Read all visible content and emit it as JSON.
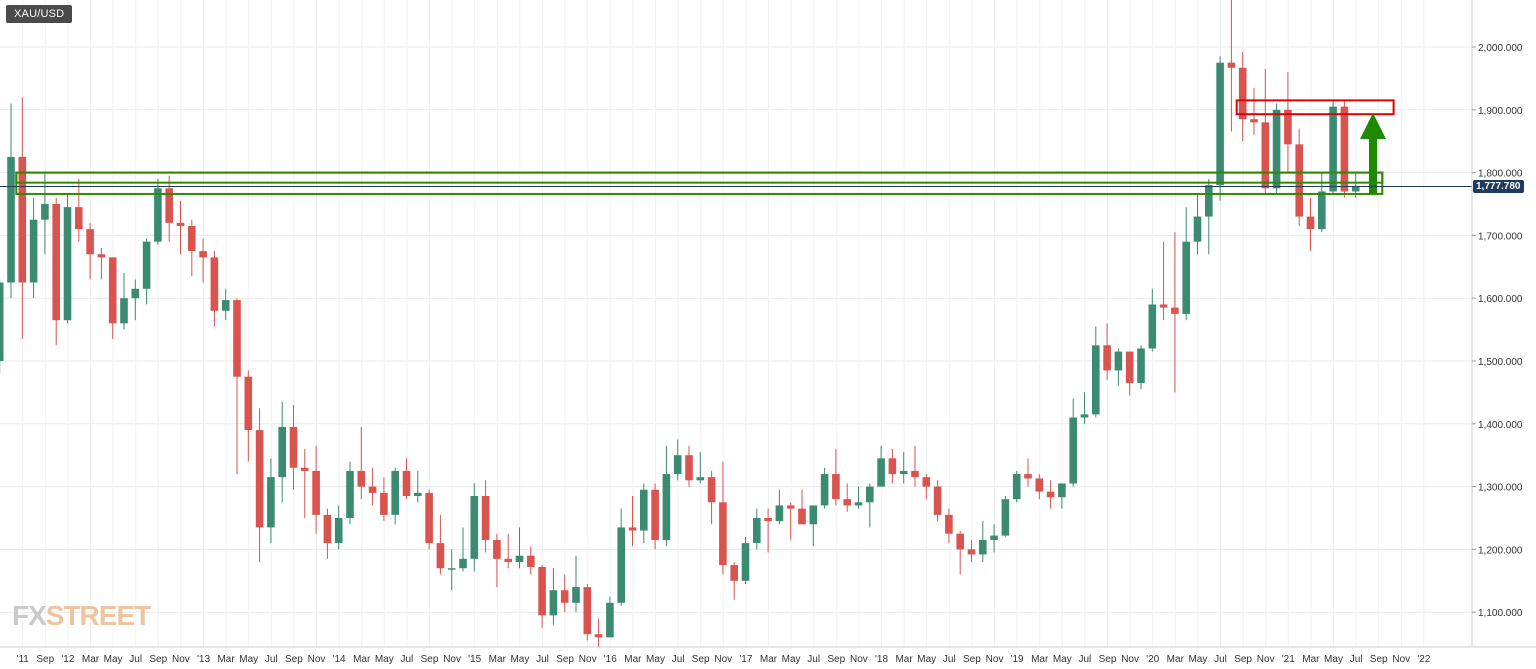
{
  "header": {
    "symbol": "XAU/USD"
  },
  "brand": {
    "left": "FX",
    "right": "STREET"
  },
  "colors": {
    "up": "#3b8a72",
    "down": "#d9534f",
    "grid": "#e9e9e9",
    "support_zone": "#2e8b00",
    "resistance_zone": "#e00000",
    "arrow": "#1e8a00",
    "price_line": "#1e3a5f"
  },
  "chart_data": {
    "type": "candlestick",
    "interval": "monthly",
    "title": "XAU/USD",
    "current_price": 1777.78,
    "current_price_label": "1,777.780",
    "ylim": [
      1050,
      2090
    ],
    "y_ticks": [
      {
        "value": 1100,
        "label": "1,100.000"
      },
      {
        "value": 1200,
        "label": "1,200.000"
      },
      {
        "value": 1300,
        "label": "1,300.000"
      },
      {
        "value": 1400,
        "label": "1,400.000"
      },
      {
        "value": 1500,
        "label": "1,500.000"
      },
      {
        "value": 1600,
        "label": "1,600.000"
      },
      {
        "value": 1700,
        "label": "1,700.000"
      },
      {
        "value": 1800,
        "label": "1,800.000"
      },
      {
        "value": 1900,
        "label": "1,900.000"
      },
      {
        "value": 2000,
        "label": "2,000.000"
      }
    ],
    "x_labels": [
      "'11",
      "Sep",
      "'12",
      "Mar",
      "May",
      "Jul",
      "Sep",
      "Nov",
      "'13",
      "Mar",
      "May",
      "Jul",
      "Sep",
      "Nov",
      "'14",
      "Mar",
      "May",
      "Jul",
      "Sep",
      "Nov",
      "'15",
      "Mar",
      "May",
      "Jul",
      "Sep",
      "Nov",
      "'16",
      "Mar",
      "May",
      "Jul",
      "Sep",
      "Nov",
      "'17",
      "Mar",
      "May",
      "Jul",
      "Sep",
      "Nov",
      "'18",
      "Mar",
      "May",
      "Jul",
      "Sep",
      "Nov",
      "'19",
      "Mar",
      "May",
      "Jul",
      "Sep",
      "Nov",
      "'20",
      "Mar",
      "May",
      "Jul",
      "Sep",
      "Nov",
      "'21",
      "Mar",
      "May",
      "Jul",
      "Sep",
      "Nov",
      "'22"
    ],
    "candles": [
      {
        "t": "2011-07",
        "o": 1500,
        "h": 1630,
        "l": 1480,
        "c": 1625
      },
      {
        "t": "2011-08",
        "o": 1625,
        "h": 1910,
        "l": 1600,
        "c": 1825
      },
      {
        "t": "2011-09",
        "o": 1825,
        "h": 1920,
        "l": 1535,
        "c": 1625
      },
      {
        "t": "2011-10",
        "o": 1625,
        "h": 1760,
        "l": 1600,
        "c": 1725
      },
      {
        "t": "2011-11",
        "o": 1725,
        "h": 1800,
        "l": 1670,
        "c": 1750
      },
      {
        "t": "2011-12",
        "o": 1750,
        "h": 1760,
        "l": 1525,
        "c": 1565
      },
      {
        "t": "2012-01",
        "o": 1565,
        "h": 1765,
        "l": 1560,
        "c": 1745
      },
      {
        "t": "2012-02",
        "o": 1745,
        "h": 1790,
        "l": 1690,
        "c": 1710
      },
      {
        "t": "2012-03",
        "o": 1710,
        "h": 1720,
        "l": 1630,
        "c": 1670
      },
      {
        "t": "2012-04",
        "o": 1670,
        "h": 1680,
        "l": 1630,
        "c": 1665
      },
      {
        "t": "2012-05",
        "o": 1665,
        "h": 1665,
        "l": 1535,
        "c": 1560
      },
      {
        "t": "2012-06",
        "o": 1560,
        "h": 1640,
        "l": 1550,
        "c": 1600
      },
      {
        "t": "2012-07",
        "o": 1600,
        "h": 1630,
        "l": 1565,
        "c": 1615
      },
      {
        "t": "2012-08",
        "o": 1615,
        "h": 1695,
        "l": 1590,
        "c": 1690
      },
      {
        "t": "2012-09",
        "o": 1690,
        "h": 1790,
        "l": 1685,
        "c": 1775
      },
      {
        "t": "2012-10",
        "o": 1775,
        "h": 1795,
        "l": 1690,
        "c": 1720
      },
      {
        "t": "2012-11",
        "o": 1720,
        "h": 1755,
        "l": 1670,
        "c": 1715
      },
      {
        "t": "2012-12",
        "o": 1715,
        "h": 1725,
        "l": 1635,
        "c": 1675
      },
      {
        "t": "2013-01",
        "o": 1675,
        "h": 1695,
        "l": 1625,
        "c": 1665
      },
      {
        "t": "2013-02",
        "o": 1665,
        "h": 1675,
        "l": 1555,
        "c": 1580
      },
      {
        "t": "2013-03",
        "o": 1580,
        "h": 1615,
        "l": 1565,
        "c": 1597
      },
      {
        "t": "2013-04",
        "o": 1597,
        "h": 1600,
        "l": 1320,
        "c": 1475
      },
      {
        "t": "2013-05",
        "o": 1475,
        "h": 1485,
        "l": 1340,
        "c": 1390
      },
      {
        "t": "2013-06",
        "o": 1390,
        "h": 1425,
        "l": 1180,
        "c": 1235
      },
      {
        "t": "2013-07",
        "o": 1235,
        "h": 1345,
        "l": 1210,
        "c": 1315
      },
      {
        "t": "2013-08",
        "o": 1315,
        "h": 1435,
        "l": 1275,
        "c": 1395
      },
      {
        "t": "2013-09",
        "o": 1395,
        "h": 1430,
        "l": 1295,
        "c": 1330
      },
      {
        "t": "2013-10",
        "o": 1330,
        "h": 1360,
        "l": 1250,
        "c": 1325
      },
      {
        "t": "2013-11",
        "o": 1325,
        "h": 1365,
        "l": 1225,
        "c": 1255
      },
      {
        "t": "2013-12",
        "o": 1255,
        "h": 1265,
        "l": 1185,
        "c": 1210
      },
      {
        "t": "2014-01",
        "o": 1210,
        "h": 1270,
        "l": 1200,
        "c": 1250
      },
      {
        "t": "2014-02",
        "o": 1250,
        "h": 1340,
        "l": 1240,
        "c": 1325
      },
      {
        "t": "2014-03",
        "o": 1325,
        "h": 1395,
        "l": 1280,
        "c": 1300
      },
      {
        "t": "2014-04",
        "o": 1300,
        "h": 1330,
        "l": 1270,
        "c": 1290
      },
      {
        "t": "2014-05",
        "o": 1290,
        "h": 1315,
        "l": 1245,
        "c": 1255
      },
      {
        "t": "2014-06",
        "o": 1255,
        "h": 1330,
        "l": 1240,
        "c": 1325
      },
      {
        "t": "2014-07",
        "o": 1325,
        "h": 1345,
        "l": 1280,
        "c": 1285
      },
      {
        "t": "2014-08",
        "o": 1285,
        "h": 1325,
        "l": 1275,
        "c": 1290
      },
      {
        "t": "2014-09",
        "o": 1290,
        "h": 1295,
        "l": 1200,
        "c": 1210
      },
      {
        "t": "2014-10",
        "o": 1210,
        "h": 1255,
        "l": 1160,
        "c": 1170
      },
      {
        "t": "2014-11",
        "o": 1170,
        "h": 1200,
        "l": 1135,
        "c": 1170
      },
      {
        "t": "2014-12",
        "o": 1170,
        "h": 1235,
        "l": 1165,
        "c": 1185
      },
      {
        "t": "2015-01",
        "o": 1185,
        "h": 1305,
        "l": 1165,
        "c": 1285
      },
      {
        "t": "2015-02",
        "o": 1285,
        "h": 1310,
        "l": 1195,
        "c": 1215
      },
      {
        "t": "2015-03",
        "o": 1215,
        "h": 1225,
        "l": 1140,
        "c": 1185
      },
      {
        "t": "2015-04",
        "o": 1185,
        "h": 1225,
        "l": 1170,
        "c": 1180
      },
      {
        "t": "2015-05",
        "o": 1180,
        "h": 1235,
        "l": 1170,
        "c": 1190
      },
      {
        "t": "2015-06",
        "o": 1190,
        "h": 1205,
        "l": 1160,
        "c": 1172
      },
      {
        "t": "2015-07",
        "o": 1172,
        "h": 1175,
        "l": 1075,
        "c": 1095
      },
      {
        "t": "2015-08",
        "o": 1095,
        "h": 1170,
        "l": 1080,
        "c": 1135
      },
      {
        "t": "2015-09",
        "o": 1135,
        "h": 1160,
        "l": 1100,
        "c": 1115
      },
      {
        "t": "2015-10",
        "o": 1115,
        "h": 1190,
        "l": 1100,
        "c": 1140
      },
      {
        "t": "2015-11",
        "o": 1140,
        "h": 1145,
        "l": 1055,
        "c": 1065
      },
      {
        "t": "2015-12",
        "o": 1065,
        "h": 1090,
        "l": 1045,
        "c": 1060
      },
      {
        "t": "2016-01",
        "o": 1060,
        "h": 1125,
        "l": 1060,
        "c": 1115
      },
      {
        "t": "2016-02",
        "o": 1115,
        "h": 1265,
        "l": 1110,
        "c": 1235
      },
      {
        "t": "2016-03",
        "o": 1235,
        "h": 1285,
        "l": 1205,
        "c": 1230
      },
      {
        "t": "2016-04",
        "o": 1230,
        "h": 1305,
        "l": 1210,
        "c": 1295
      },
      {
        "t": "2016-05",
        "o": 1295,
        "h": 1305,
        "l": 1200,
        "c": 1215
      },
      {
        "t": "2016-06",
        "o": 1215,
        "h": 1365,
        "l": 1205,
        "c": 1320
      },
      {
        "t": "2016-07",
        "o": 1320,
        "h": 1375,
        "l": 1310,
        "c": 1350
      },
      {
        "t": "2016-08",
        "o": 1350,
        "h": 1365,
        "l": 1300,
        "c": 1310
      },
      {
        "t": "2016-09",
        "o": 1310,
        "h": 1355,
        "l": 1305,
        "c": 1315
      },
      {
        "t": "2016-10",
        "o": 1315,
        "h": 1325,
        "l": 1240,
        "c": 1275
      },
      {
        "t": "2016-11",
        "o": 1275,
        "h": 1340,
        "l": 1160,
        "c": 1175
      },
      {
        "t": "2016-12",
        "o": 1175,
        "h": 1180,
        "l": 1120,
        "c": 1150
      },
      {
        "t": "2017-01",
        "o": 1150,
        "h": 1220,
        "l": 1145,
        "c": 1210
      },
      {
        "t": "2017-02",
        "o": 1210,
        "h": 1265,
        "l": 1200,
        "c": 1250
      },
      {
        "t": "2017-03",
        "o": 1250,
        "h": 1265,
        "l": 1195,
        "c": 1245
      },
      {
        "t": "2017-04",
        "o": 1245,
        "h": 1295,
        "l": 1240,
        "c": 1270
      },
      {
        "t": "2017-05",
        "o": 1270,
        "h": 1275,
        "l": 1215,
        "c": 1265
      },
      {
        "t": "2017-06",
        "o": 1265,
        "h": 1295,
        "l": 1240,
        "c": 1240
      },
      {
        "t": "2017-07",
        "o": 1240,
        "h": 1270,
        "l": 1205,
        "c": 1270
      },
      {
        "t": "2017-08",
        "o": 1270,
        "h": 1330,
        "l": 1265,
        "c": 1320
      },
      {
        "t": "2017-09",
        "o": 1320,
        "h": 1360,
        "l": 1270,
        "c": 1280
      },
      {
        "t": "2017-10",
        "o": 1280,
        "h": 1305,
        "l": 1260,
        "c": 1270
      },
      {
        "t": "2017-11",
        "o": 1270,
        "h": 1300,
        "l": 1265,
        "c": 1275
      },
      {
        "t": "2017-12",
        "o": 1275,
        "h": 1305,
        "l": 1235,
        "c": 1300
      },
      {
        "t": "2018-01",
        "o": 1300,
        "h": 1365,
        "l": 1300,
        "c": 1345
      },
      {
        "t": "2018-02",
        "o": 1345,
        "h": 1360,
        "l": 1305,
        "c": 1320
      },
      {
        "t": "2018-03",
        "o": 1320,
        "h": 1355,
        "l": 1305,
        "c": 1325
      },
      {
        "t": "2018-04",
        "o": 1325,
        "h": 1365,
        "l": 1300,
        "c": 1315
      },
      {
        "t": "2018-05",
        "o": 1315,
        "h": 1320,
        "l": 1280,
        "c": 1300
      },
      {
        "t": "2018-06",
        "o": 1300,
        "h": 1310,
        "l": 1245,
        "c": 1255
      },
      {
        "t": "2018-07",
        "o": 1255,
        "h": 1265,
        "l": 1210,
        "c": 1225
      },
      {
        "t": "2018-08",
        "o": 1225,
        "h": 1230,
        "l": 1160,
        "c": 1200
      },
      {
        "t": "2018-09",
        "o": 1200,
        "h": 1215,
        "l": 1180,
        "c": 1192
      },
      {
        "t": "2018-10",
        "o": 1192,
        "h": 1245,
        "l": 1180,
        "c": 1215
      },
      {
        "t": "2018-11",
        "o": 1215,
        "h": 1240,
        "l": 1195,
        "c": 1222
      },
      {
        "t": "2018-12",
        "o": 1222,
        "h": 1285,
        "l": 1220,
        "c": 1280
      },
      {
        "t": "2019-01",
        "o": 1280,
        "h": 1325,
        "l": 1275,
        "c": 1320
      },
      {
        "t": "2019-02",
        "o": 1320,
        "h": 1345,
        "l": 1300,
        "c": 1313
      },
      {
        "t": "2019-03",
        "o": 1313,
        "h": 1320,
        "l": 1280,
        "c": 1292
      },
      {
        "t": "2019-04",
        "o": 1292,
        "h": 1310,
        "l": 1265,
        "c": 1283
      },
      {
        "t": "2019-05",
        "o": 1283,
        "h": 1305,
        "l": 1265,
        "c": 1305
      },
      {
        "t": "2019-06",
        "o": 1305,
        "h": 1440,
        "l": 1300,
        "c": 1410
      },
      {
        "t": "2019-07",
        "o": 1410,
        "h": 1450,
        "l": 1400,
        "c": 1415
      },
      {
        "t": "2019-08",
        "o": 1415,
        "h": 1555,
        "l": 1410,
        "c": 1525
      },
      {
        "t": "2019-09",
        "o": 1525,
        "h": 1560,
        "l": 1470,
        "c": 1485
      },
      {
        "t": "2019-10",
        "o": 1485,
        "h": 1520,
        "l": 1460,
        "c": 1515
      },
      {
        "t": "2019-11",
        "o": 1515,
        "h": 1515,
        "l": 1445,
        "c": 1465
      },
      {
        "t": "2019-12",
        "o": 1465,
        "h": 1525,
        "l": 1455,
        "c": 1520
      },
      {
        "t": "2020-01",
        "o": 1520,
        "h": 1615,
        "l": 1515,
        "c": 1590
      },
      {
        "t": "2020-02",
        "o": 1590,
        "h": 1690,
        "l": 1565,
        "c": 1585
      },
      {
        "t": "2020-03",
        "o": 1585,
        "h": 1705,
        "l": 1450,
        "c": 1575
      },
      {
        "t": "2020-04",
        "o": 1575,
        "h": 1745,
        "l": 1565,
        "c": 1690
      },
      {
        "t": "2020-05",
        "o": 1690,
        "h": 1765,
        "l": 1670,
        "c": 1730
      },
      {
        "t": "2020-06",
        "o": 1730,
        "h": 1790,
        "l": 1670,
        "c": 1780
      },
      {
        "t": "2020-07",
        "o": 1780,
        "h": 1985,
        "l": 1755,
        "c": 1975
      },
      {
        "t": "2020-08",
        "o": 1975,
        "h": 2075,
        "l": 1865,
        "c": 1967
      },
      {
        "t": "2020-09",
        "o": 1967,
        "h": 1992,
        "l": 1850,
        "c": 1885
      },
      {
        "t": "2020-10",
        "o": 1885,
        "h": 1935,
        "l": 1860,
        "c": 1880
      },
      {
        "t": "2020-11",
        "o": 1880,
        "h": 1965,
        "l": 1765,
        "c": 1775
      },
      {
        "t": "2020-12",
        "o": 1775,
        "h": 1910,
        "l": 1765,
        "c": 1900
      },
      {
        "t": "2021-01",
        "o": 1900,
        "h": 1960,
        "l": 1800,
        "c": 1845
      },
      {
        "t": "2021-02",
        "o": 1845,
        "h": 1870,
        "l": 1715,
        "c": 1730
      },
      {
        "t": "2021-03",
        "o": 1730,
        "h": 1760,
        "l": 1675,
        "c": 1710
      },
      {
        "t": "2021-04",
        "o": 1710,
        "h": 1800,
        "l": 1705,
        "c": 1770
      },
      {
        "t": "2021-05",
        "o": 1770,
        "h": 1915,
        "l": 1765,
        "c": 1905
      },
      {
        "t": "2021-06",
        "o": 1905,
        "h": 1915,
        "l": 1760,
        "c": 1770
      },
      {
        "t": "2021-07",
        "o": 1770,
        "h": 1800,
        "l": 1760,
        "c": 1778
      }
    ],
    "annotations": [
      {
        "kind": "rectangle",
        "color": "green",
        "from": "2011-09",
        "to": "2021-09",
        "y_top": 1800,
        "y_bottom": 1766
      },
      {
        "kind": "rectangle",
        "color": "green",
        "from": "2011-09",
        "to": "2021-09",
        "y_top": 1800,
        "y_bottom": 1784
      },
      {
        "kind": "rectangle",
        "color": "red",
        "from": "2020-09",
        "to": "2021-10",
        "y_top": 1915,
        "y_bottom": 1893
      },
      {
        "kind": "arrow",
        "color": "green",
        "at": "2021-08",
        "y_from": 1766,
        "y_to": 1895
      }
    ]
  }
}
